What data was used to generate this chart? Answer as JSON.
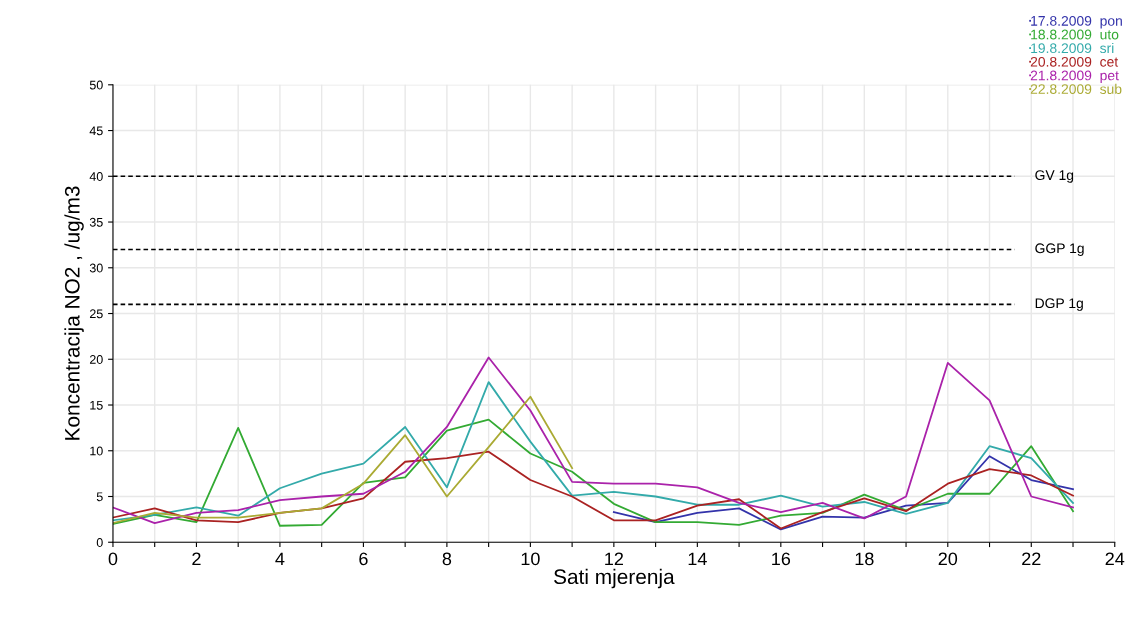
{
  "chart_data": {
    "type": "line",
    "xlabel": "Sati mjerenja",
    "ylabel": "Koncentracija NO2 , /ug/m3",
    "x": [
      0,
      1,
      2,
      3,
      4,
      5,
      6,
      7,
      8,
      9,
      10,
      11,
      12,
      13,
      14,
      15,
      16,
      17,
      18,
      19,
      20,
      21,
      22,
      23
    ],
    "xlim": [
      0,
      24
    ],
    "ylim": [
      0,
      50
    ],
    "xticks": [
      0,
      {
        "value": 1,
        "label": null
      },
      2,
      {
        "value": 3,
        "label": null
      },
      4,
      {
        "value": 5,
        "label": null
      },
      6,
      {
        "value": 7,
        "label": null
      },
      8,
      {
        "value": 9,
        "label": null
      },
      10,
      {
        "value": 11,
        "label": null
      },
      12,
      {
        "value": 13,
        "label": null
      },
      14,
      {
        "value": 15,
        "label": null
      },
      16,
      {
        "value": 17,
        "label": null
      },
      18,
      {
        "value": 19,
        "label": null
      },
      20,
      {
        "value": 21,
        "label": null
      },
      22,
      {
        "value": 23,
        "label": null
      },
      24
    ],
    "yticks": [
      0,
      5,
      10,
      15,
      20,
      25,
      30,
      35,
      40,
      45,
      50
    ],
    "grid": true,
    "legend": "top right",
    "marker": "none",
    "line_style": "solid",
    "series": [
      {
        "name": "17.8.2009  pon",
        "color": "#3333aa",
        "values": [
          null,
          null,
          null,
          null,
          null,
          null,
          null,
          null,
          null,
          null,
          null,
          null,
          3.3,
          2.2,
          3.2,
          3.7,
          1.4,
          2.8,
          2.7,
          4.0,
          4.3,
          9.4,
          6.8,
          5.8
        ]
      },
      {
        "name": "18.8.2009  uto",
        "color": "#33aa33",
        "values": [
          2.0,
          3.0,
          2.2,
          12.5,
          1.8,
          1.9,
          6.5,
          7.1,
          12.2,
          13.4,
          9.7,
          7.7,
          4.2,
          2.2,
          2.2,
          1.9,
          2.9,
          3.2,
          5.2,
          3.5,
          5.3,
          5.3,
          10.5,
          3.4
        ]
      },
      {
        "name": "19.8.2009  sri",
        "color": "#33aaaa",
        "values": [
          2.4,
          3.0,
          3.8,
          2.9,
          5.9,
          7.5,
          8.6,
          12.6,
          6.0,
          17.5,
          11.0,
          5.1,
          5.5,
          5.0,
          4.1,
          4.1,
          5.1,
          3.9,
          4.4,
          3.1,
          4.3,
          10.5,
          9.2,
          4.3
        ]
      },
      {
        "name": "20.8.2009  cet",
        "color": "#aa2222",
        "values": [
          2.7,
          3.7,
          2.4,
          2.2,
          3.2,
          3.7,
          4.8,
          8.8,
          9.2,
          9.9,
          6.8,
          5.0,
          2.4,
          2.4,
          4.0,
          4.7,
          1.5,
          3.3,
          4.8,
          3.4,
          6.4,
          8.0,
          7.3,
          5.1
        ]
      },
      {
        "name": "21.8.2009  pet",
        "color": "#aa22aa",
        "values": [
          3.8,
          2.1,
          3.2,
          3.5,
          4.6,
          5.0,
          5.3,
          7.7,
          12.6,
          20.2,
          14.4,
          6.6,
          6.4,
          6.4,
          6.0,
          4.3,
          3.3,
          4.3,
          2.6,
          5.0,
          19.6,
          15.5,
          5.0,
          3.8
        ]
      },
      {
        "name": "22.8.2009  sub",
        "color": "#aaaa33",
        "values": [
          2.1,
          3.2,
          2.7,
          2.7,
          3.2,
          3.7,
          6.4,
          11.7,
          5.0,
          10.4,
          15.9,
          8.1,
          null,
          null,
          null,
          null,
          null,
          null,
          null,
          null,
          null,
          null,
          null,
          null
        ]
      }
    ],
    "ref_lines": [
      {
        "axis": "y",
        "value": 40,
        "label": "GV 1g",
        "color": "#000000",
        "line_style": "dashed"
      },
      {
        "axis": "y",
        "value": 32,
        "label": "GGP 1g",
        "color": "#000000",
        "line_style": "dashed"
      },
      {
        "axis": "y",
        "value": 26,
        "label": "DGP 1g",
        "color": "#000000",
        "line_style": "dashed"
      }
    ]
  }
}
